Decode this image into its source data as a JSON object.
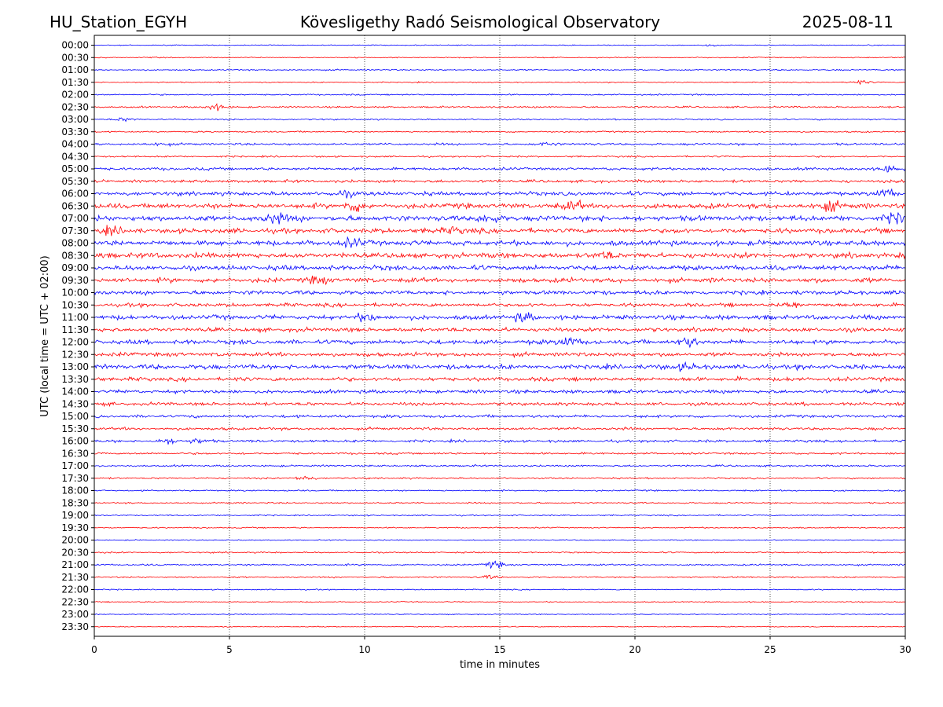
{
  "header": {
    "station": "HU_Station_EGYH",
    "observatory": "Kövesligethy Radó Seismological Observatory",
    "date": "2025-08-11"
  },
  "chart_data": {
    "type": "line",
    "title": "Kövesligethy Radó Seismological Observatory",
    "xlabel": "time in minutes",
    "ylabel": "UTC (local time = UTC + 02:00)",
    "xlim": [
      0,
      30
    ],
    "xticks": [
      "0",
      "5",
      "10",
      "15",
      "20",
      "25",
      "30"
    ],
    "grid": "vertical dotted lines at x = 5, 10, 15, 20, 25",
    "row_labels": [
      "00:00",
      "00:30",
      "01:00",
      "01:30",
      "02:00",
      "02:30",
      "03:00",
      "03:30",
      "04:00",
      "04:30",
      "05:00",
      "05:30",
      "06:00",
      "06:30",
      "07:00",
      "07:30",
      "08:00",
      "08:30",
      "09:00",
      "09:30",
      "10:00",
      "10:30",
      "11:00",
      "11:30",
      "12:00",
      "12:30",
      "13:00",
      "13:30",
      "14:00",
      "14:30",
      "15:00",
      "15:30",
      "16:00",
      "16:30",
      "17:00",
      "17:30",
      "18:00",
      "18:30",
      "19:00",
      "19:30",
      "20:00",
      "20:30",
      "21:00",
      "21:30",
      "22:00",
      "22:30",
      "23:00",
      "23:30"
    ],
    "colors": {
      "on_the_hour": "#0000ff",
      "half_hour": "#ff0000"
    },
    "noise_level": [
      0.5,
      0.6,
      0.7,
      0.6,
      0.8,
      0.9,
      0.8,
      0.8,
      1.2,
      0.9,
      1.5,
      1.6,
      2.2,
      2.8,
      3.0,
      2.6,
      2.8,
      2.9,
      2.7,
      2.6,
      2.2,
      2.0,
      2.5,
      2.2,
      2.4,
      2.2,
      2.6,
      2.2,
      1.9,
      1.8,
      1.6,
      1.5,
      1.4,
      1.1,
      1.0,
      0.9,
      0.8,
      0.8,
      0.7,
      0.7,
      0.6,
      0.8,
      0.9,
      0.8,
      0.6,
      0.6,
      0.5,
      0.5
    ],
    "events": [
      {
        "row": 0,
        "minute": 22.8,
        "amplitude": 1.2
      },
      {
        "row": 3,
        "minute": 28.3,
        "amplitude": 2.5
      },
      {
        "row": 5,
        "minute": 4.5,
        "amplitude": 4.0
      },
      {
        "row": 6,
        "minute": 1.1,
        "amplitude": 2.0
      },
      {
        "row": 8,
        "minute": 2.5,
        "amplitude": 2.0
      },
      {
        "row": 8,
        "minute": 16.8,
        "amplitude": 2.0
      },
      {
        "row": 10,
        "minute": 29.4,
        "amplitude": 4.0
      },
      {
        "row": 12,
        "minute": 9.3,
        "amplitude": 3.5
      },
      {
        "row": 12,
        "minute": 29.3,
        "amplitude": 4.5
      },
      {
        "row": 13,
        "minute": 9.6,
        "amplitude": 6.0
      },
      {
        "row": 13,
        "minute": 17.8,
        "amplitude": 5.0
      },
      {
        "row": 13,
        "minute": 27.2,
        "amplitude": 8.0
      },
      {
        "row": 14,
        "minute": 6.7,
        "amplitude": 7.0
      },
      {
        "row": 14,
        "minute": 14.5,
        "amplitude": 5.0
      },
      {
        "row": 14,
        "minute": 29.6,
        "amplitude": 6.0
      },
      {
        "row": 15,
        "minute": 0.6,
        "amplitude": 5.0
      },
      {
        "row": 15,
        "minute": 13.3,
        "amplitude": 4.0
      },
      {
        "row": 16,
        "minute": 9.5,
        "amplitude": 5.0
      },
      {
        "row": 17,
        "minute": 19.0,
        "amplitude": 3.5
      },
      {
        "row": 19,
        "minute": 8.3,
        "amplitude": 4.0
      },
      {
        "row": 21,
        "minute": 25.8,
        "amplitude": 3.0
      },
      {
        "row": 22,
        "minute": 10.0,
        "amplitude": 4.0
      },
      {
        "row": 22,
        "minute": 15.9,
        "amplitude": 4.5
      },
      {
        "row": 24,
        "minute": 17.5,
        "amplitude": 6.0
      },
      {
        "row": 24,
        "minute": 22.0,
        "amplitude": 5.0
      },
      {
        "row": 26,
        "minute": 21.8,
        "amplitude": 4.0
      },
      {
        "row": 32,
        "minute": 2.8,
        "amplitude": 3.0
      },
      {
        "row": 32,
        "minute": 3.8,
        "amplitude": 2.5
      },
      {
        "row": 35,
        "minute": 7.8,
        "amplitude": 3.0
      },
      {
        "row": 42,
        "minute": 14.8,
        "amplitude": 4.0
      },
      {
        "row": 43,
        "minute": 14.6,
        "amplitude": 2.0
      }
    ]
  }
}
